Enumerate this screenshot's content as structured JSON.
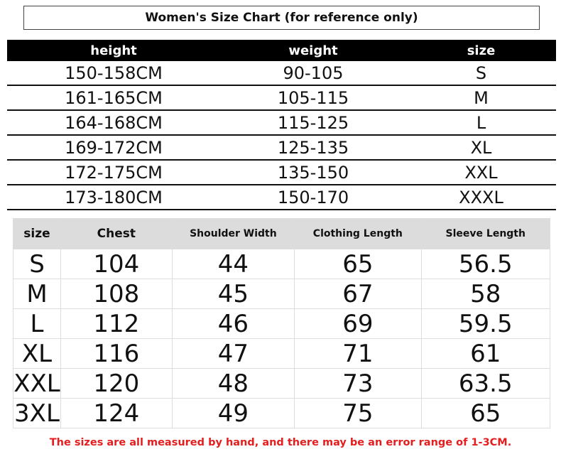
{
  "title": "Women's Size Chart (for reference only)",
  "table1": {
    "headers": [
      "height",
      "weight",
      "size"
    ],
    "rows": [
      [
        "150-158CM",
        "90-105",
        "S"
      ],
      [
        "161-165CM",
        "105-115",
        "M"
      ],
      [
        "164-168CM",
        "115-125",
        "L"
      ],
      [
        "169-172CM",
        "125-135",
        "XL"
      ],
      [
        "172-175CM",
        "135-150",
        "XXL"
      ],
      [
        "173-180CM",
        "150-170",
        "XXXL"
      ]
    ]
  },
  "table2": {
    "headers": [
      "size",
      "Chest",
      "Shoulder Width",
      "Clothing Length",
      "Sleeve Length"
    ],
    "rows": [
      [
        "S",
        "104",
        "44",
        "65",
        "56.5"
      ],
      [
        "M",
        "108",
        "45",
        "67",
        "58"
      ],
      [
        "L",
        "112",
        "46",
        "69",
        "59.5"
      ],
      [
        "XL",
        "116",
        "47",
        "71",
        "61"
      ],
      [
        "XXL",
        "120",
        "48",
        "73",
        "63.5"
      ],
      [
        "3XL",
        "124",
        "49",
        "75",
        "65"
      ]
    ]
  },
  "note": "The sizes are all measured by hand, and there may be an error range of 1-3CM.",
  "colors": {
    "note": "#e41e1e",
    "header_bar": "#000000",
    "header_gray": "#dcdcdc"
  }
}
